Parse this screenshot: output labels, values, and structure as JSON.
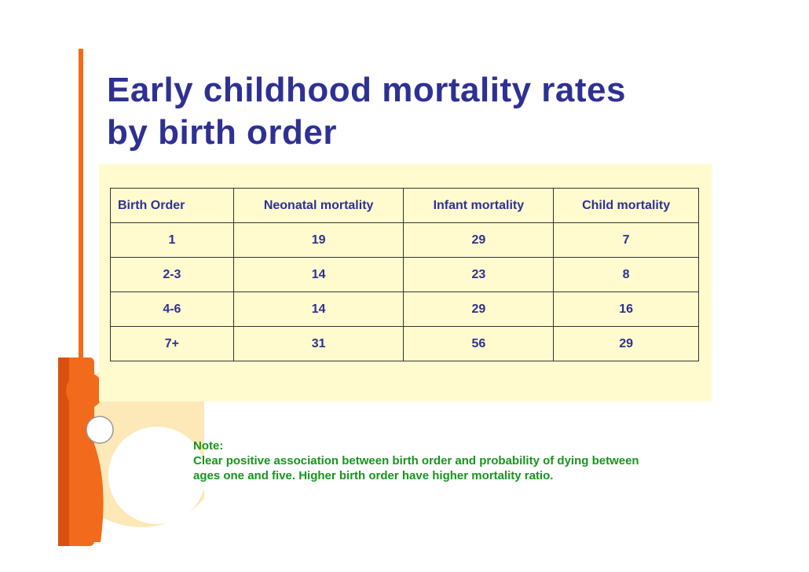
{
  "slide": {
    "title_line1": "Early childhood mortality rates",
    "title_line2": "by birth order"
  },
  "table": {
    "headers": [
      "Birth Order",
      "Neonatal mortality",
      "Infant mortality",
      "Child mortality"
    ],
    "rows": [
      [
        "1",
        "19",
        "29",
        "7"
      ],
      [
        "2-3",
        "14",
        "23",
        "8"
      ],
      [
        "4-6",
        "14",
        "29",
        "16"
      ],
      [
        "7+",
        "31",
        "56",
        "29"
      ]
    ]
  },
  "note": {
    "label": "Note:",
    "line1": "Clear positive association between birth order and probability of dying between",
    "line2": "ages one and five. Higher birth order have higher mortality ratio."
  },
  "colors": {
    "title": "#2e3192",
    "accent": "#f26a1b",
    "panel": "#fffbcf",
    "note": "#16951c"
  }
}
